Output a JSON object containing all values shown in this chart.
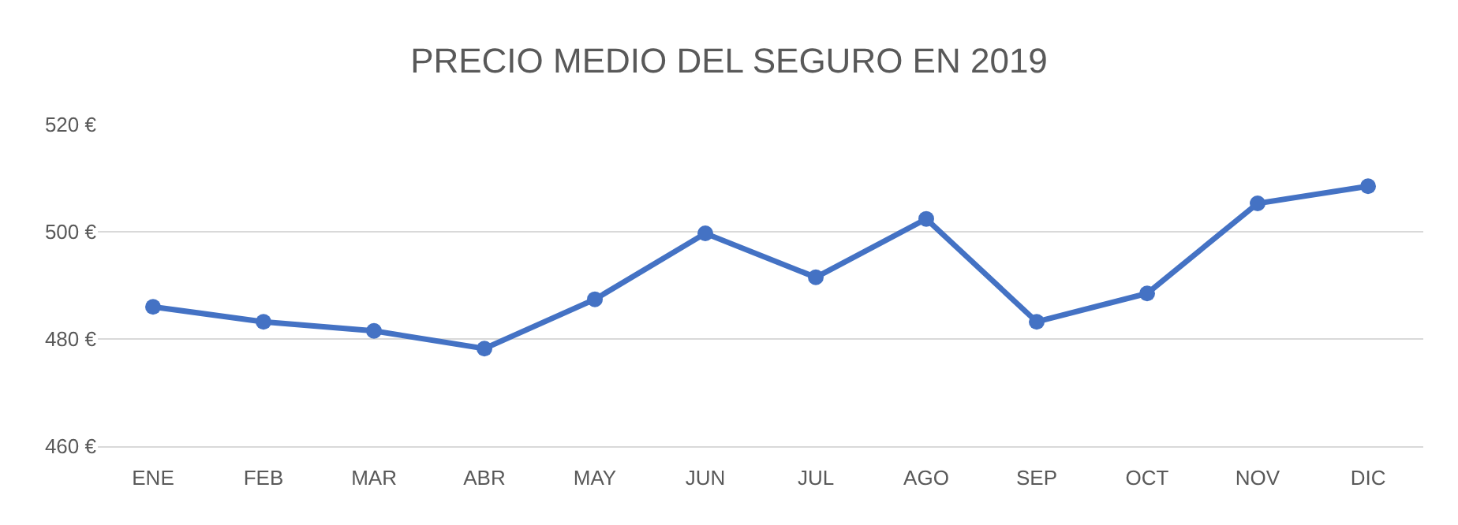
{
  "chart_data": {
    "type": "line",
    "title": "PRECIO MEDIO DEL SEGURO EN 2019",
    "categories": [
      "ENE",
      "FEB",
      "MAR",
      "ABR",
      "MAY",
      "JUN",
      "JUL",
      "AGO",
      "SEP",
      "OCT",
      "NOV",
      "DIC"
    ],
    "series": [
      {
        "color": "#4472c4",
        "values": [
          486,
          483.2,
          481.5,
          478.2,
          487.4,
          499.7,
          491.5,
          502.4,
          483.2,
          488.5,
          505.3,
          508.5
        ]
      }
    ],
    "ylim": [
      460,
      520
    ],
    "yticks": [
      {
        "value": 460,
        "label": "460 €"
      },
      {
        "value": 480,
        "label": "480 €"
      },
      {
        "value": 500,
        "label": "500 €"
      },
      {
        "value": 520,
        "label": "520 €"
      }
    ],
    "grid": "y",
    "marker": "circle",
    "line_style": "solid"
  }
}
